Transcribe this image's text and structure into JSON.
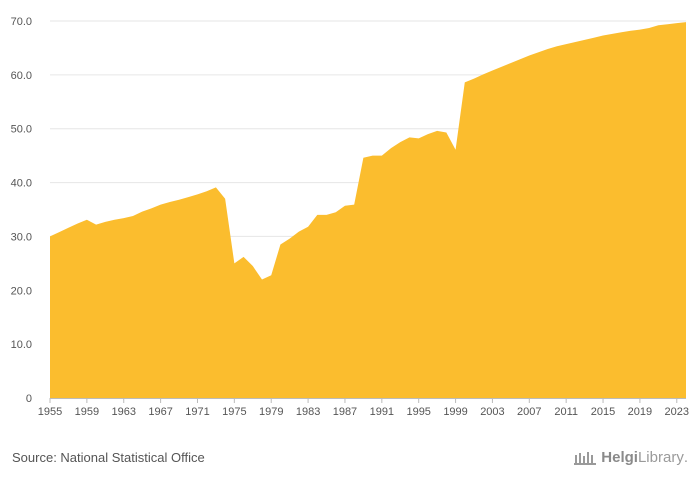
{
  "chart_data": {
    "type": "area",
    "title": "",
    "xlabel": "",
    "ylabel": "",
    "ylim": [
      0,
      70
    ],
    "yticks": [
      0,
      10,
      20,
      30,
      40,
      50,
      60,
      70
    ],
    "ytick_labels": [
      "0",
      "10.0",
      "20.0",
      "30.0",
      "40.0",
      "50.0",
      "60.0",
      "70.0"
    ],
    "xticks": [
      1955,
      1959,
      1963,
      1967,
      1971,
      1975,
      1979,
      1983,
      1987,
      1991,
      1995,
      1999,
      2003,
      2007,
      2011,
      2015,
      2019,
      2023
    ],
    "xlim": [
      1955,
      2024
    ],
    "grid": true,
    "color": "#fbbd2e",
    "x": [
      1955,
      1956,
      1957,
      1958,
      1959,
      1960,
      1961,
      1962,
      1963,
      1964,
      1965,
      1966,
      1967,
      1968,
      1969,
      1970,
      1971,
      1972,
      1973,
      1974,
      1975,
      1976,
      1977,
      1978,
      1979,
      1980,
      1981,
      1982,
      1983,
      1984,
      1985,
      1986,
      1987,
      1988,
      1989,
      1990,
      1991,
      1992,
      1993,
      1994,
      1995,
      1996,
      1997,
      1998,
      1999,
      2000,
      2001,
      2002,
      2003,
      2004,
      2005,
      2006,
      2007,
      2008,
      2009,
      2010,
      2011,
      2012,
      2013,
      2014,
      2015,
      2016,
      2017,
      2018,
      2019,
      2020,
      2021,
      2022,
      2023,
      2024
    ],
    "y": [
      30.0,
      30.8,
      31.6,
      32.4,
      33.1,
      32.2,
      32.7,
      33.1,
      33.4,
      33.8,
      34.6,
      35.2,
      35.9,
      36.4,
      36.8,
      37.3,
      37.8,
      38.4,
      39.1,
      37.0,
      25.0,
      26.2,
      24.5,
      22.0,
      22.8,
      28.5,
      29.6,
      30.9,
      31.8,
      34.0,
      34.0,
      34.5,
      35.7,
      35.9,
      44.6,
      45.0,
      45.0,
      46.4,
      47.5,
      48.4,
      48.2,
      49.0,
      49.6,
      49.3,
      46.1,
      58.6,
      59.3,
      60.1,
      60.8,
      61.5,
      62.2,
      62.9,
      63.6,
      64.2,
      64.8,
      65.3,
      65.7,
      66.1,
      66.5,
      66.9,
      67.3,
      67.6,
      67.9,
      68.2,
      68.4,
      68.7,
      69.2,
      69.4,
      69.6,
      69.8
    ]
  },
  "footer": {
    "source_text": "Source: National Statistical Office",
    "brand_name_part1": "Helgi",
    "brand_name_part2": "Library",
    "brand_suffix": ".",
    "logo_icon": "library-logo-icon"
  }
}
